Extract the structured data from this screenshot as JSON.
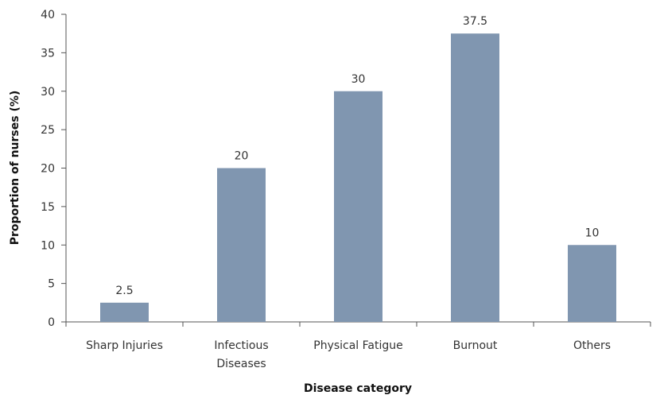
{
  "chart_data": {
    "type": "bar",
    "categories": [
      [
        "Sharp Injuries"
      ],
      [
        "Infectious",
        "Diseases"
      ],
      [
        "Physical Fatigue"
      ],
      [
        "Burnout"
      ],
      [
        "Others"
      ]
    ],
    "values": [
      2.5,
      20,
      30,
      37.5,
      10
    ],
    "data_labels": [
      "2.5",
      "20",
      "30",
      "37.5",
      "10"
    ],
    "title": "",
    "xlabel": "Disease category",
    "ylabel": "Proportion of nurses (%)",
    "ylim": [
      0,
      40
    ],
    "yticks": [
      0,
      5,
      10,
      15,
      20,
      25,
      30,
      35,
      40
    ],
    "grid": false,
    "legend": "none",
    "bar_color": "#8096b0"
  }
}
